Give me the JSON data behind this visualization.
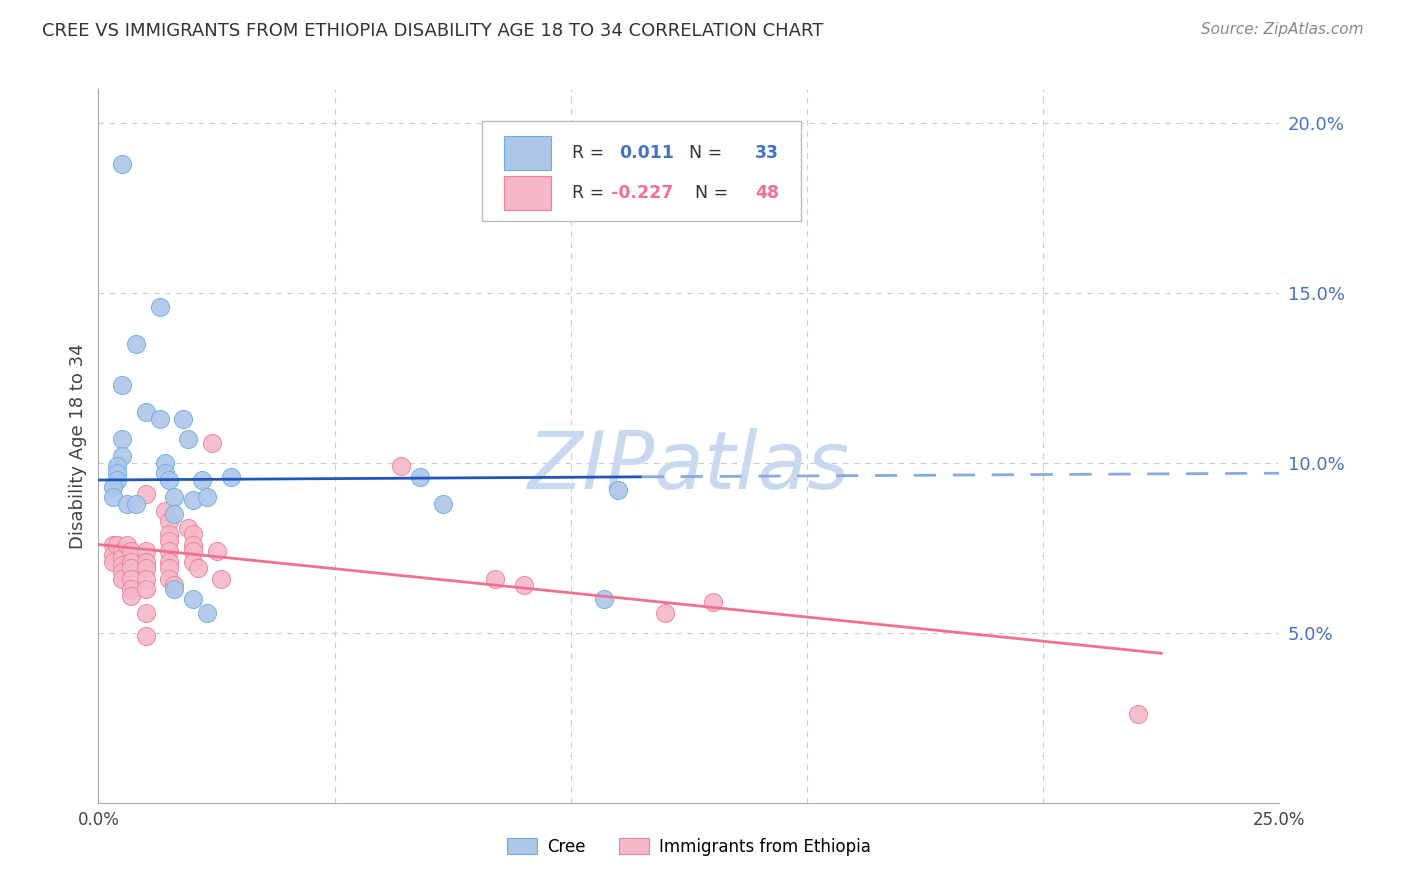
{
  "title": "CREE VS IMMIGRANTS FROM ETHIOPIA DISABILITY AGE 18 TO 34 CORRELATION CHART",
  "source": "Source: ZipAtlas.com",
  "ylabel": "Disability Age 18 to 34",
  "cree_R": "0.011",
  "cree_N": "33",
  "ethiopia_R": "-0.227",
  "ethiopia_N": "48",
  "xlim": [
    0.0,
    0.25
  ],
  "ylim": [
    0.0,
    0.21
  ],
  "yticks": [
    0.05,
    0.1,
    0.15,
    0.2
  ],
  "ytick_labels": [
    "5.0%",
    "10.0%",
    "15.0%",
    "20.0%"
  ],
  "cree_color": "#aec6e8",
  "cree_edge_color": "#6aaee8",
  "ethiopia_color": "#f5b8c8",
  "ethiopia_edge_color": "#f08098",
  "trendline_cree_solid_color": "#2255bb",
  "trendline_cree_dash_color": "#88aadd",
  "trendline_ethiopia_color": "#f07090",
  "watermark_color": "#c8d8ee",
  "background_color": "#ffffff",
  "gridline_color": "#cccccc",
  "right_axis_color": "#4472c4",
  "cree_points": [
    [
      0.005,
      0.188
    ],
    [
      0.008,
      0.135
    ],
    [
      0.005,
      0.123
    ],
    [
      0.01,
      0.115
    ],
    [
      0.013,
      0.146
    ],
    [
      0.005,
      0.107
    ],
    [
      0.005,
      0.102
    ],
    [
      0.004,
      0.099
    ],
    [
      0.004,
      0.097
    ],
    [
      0.004,
      0.095
    ],
    [
      0.003,
      0.093
    ],
    [
      0.003,
      0.09
    ],
    [
      0.006,
      0.088
    ],
    [
      0.008,
      0.088
    ],
    [
      0.013,
      0.113
    ],
    [
      0.014,
      0.1
    ],
    [
      0.018,
      0.113
    ],
    [
      0.019,
      0.107
    ],
    [
      0.014,
      0.097
    ],
    [
      0.015,
      0.095
    ],
    [
      0.016,
      0.09
    ],
    [
      0.016,
      0.085
    ],
    [
      0.02,
      0.089
    ],
    [
      0.022,
      0.095
    ],
    [
      0.023,
      0.09
    ],
    [
      0.028,
      0.096
    ],
    [
      0.068,
      0.096
    ],
    [
      0.073,
      0.088
    ],
    [
      0.11,
      0.092
    ],
    [
      0.016,
      0.063
    ],
    [
      0.02,
      0.06
    ],
    [
      0.023,
      0.056
    ],
    [
      0.107,
      0.06
    ]
  ],
  "ethiopia_points": [
    [
      0.003,
      0.076
    ],
    [
      0.003,
      0.073
    ],
    [
      0.003,
      0.071
    ],
    [
      0.004,
      0.076
    ],
    [
      0.005,
      0.074
    ],
    [
      0.005,
      0.072
    ],
    [
      0.005,
      0.07
    ],
    [
      0.005,
      0.068
    ],
    [
      0.005,
      0.066
    ],
    [
      0.006,
      0.076
    ],
    [
      0.007,
      0.074
    ],
    [
      0.007,
      0.071
    ],
    [
      0.007,
      0.069
    ],
    [
      0.007,
      0.066
    ],
    [
      0.007,
      0.063
    ],
    [
      0.007,
      0.061
    ],
    [
      0.01,
      0.091
    ],
    [
      0.01,
      0.074
    ],
    [
      0.01,
      0.071
    ],
    [
      0.01,
      0.069
    ],
    [
      0.01,
      0.066
    ],
    [
      0.01,
      0.063
    ],
    [
      0.01,
      0.056
    ],
    [
      0.01,
      0.049
    ],
    [
      0.014,
      0.086
    ],
    [
      0.015,
      0.083
    ],
    [
      0.015,
      0.079
    ],
    [
      0.015,
      0.077
    ],
    [
      0.015,
      0.074
    ],
    [
      0.015,
      0.071
    ],
    [
      0.015,
      0.069
    ],
    [
      0.015,
      0.066
    ],
    [
      0.016,
      0.064
    ],
    [
      0.019,
      0.081
    ],
    [
      0.02,
      0.079
    ],
    [
      0.02,
      0.076
    ],
    [
      0.02,
      0.074
    ],
    [
      0.02,
      0.071
    ],
    [
      0.021,
      0.069
    ],
    [
      0.024,
      0.106
    ],
    [
      0.025,
      0.074
    ],
    [
      0.026,
      0.066
    ],
    [
      0.064,
      0.099
    ],
    [
      0.084,
      0.066
    ],
    [
      0.09,
      0.064
    ],
    [
      0.12,
      0.056
    ],
    [
      0.13,
      0.059
    ],
    [
      0.22,
      0.026
    ]
  ],
  "cree_trendline_x0": 0.0,
  "cree_trendline_x_solid_end": 0.115,
  "cree_trendline_x1": 0.25,
  "cree_trendline_y0": 0.095,
  "cree_trendline_y1": 0.097,
  "ethiopia_trendline_x0": 0.0,
  "ethiopia_trendline_x1": 0.225,
  "ethiopia_trendline_y0": 0.076,
  "ethiopia_trendline_y1": 0.044
}
